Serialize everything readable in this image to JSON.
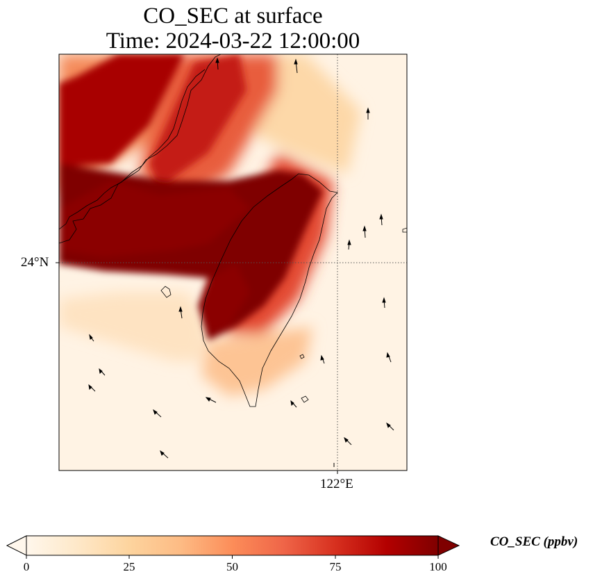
{
  "title": {
    "line1": "CO_SEC at surface",
    "line2": "Time: 2024-03-22 12:00:00"
  },
  "map": {
    "projection": "PlateCarree",
    "gridlines": "dotted",
    "lat_tick_label": "24°N",
    "lon_tick_label": "122°E",
    "features": [
      "coastline",
      "wind-vectors",
      "gridded-concentration-field"
    ],
    "colormap": "OrRd"
  },
  "colorbar": {
    "label": "CO_SEC (ppbv)",
    "ticks": [
      "0",
      "25",
      "50",
      "75",
      "100"
    ],
    "min": 0,
    "max": 100,
    "extend": "both",
    "colors": [
      "#fff7ec",
      "#fee8c8",
      "#fdd49e",
      "#fdbb84",
      "#fc8d59",
      "#ef6548",
      "#d7301f",
      "#b30000",
      "#7f0000"
    ]
  },
  "chart_data": {
    "type": "heatmap",
    "title": "CO_SEC at surface",
    "subtitle": "Time: 2024-03-22 12:00:00",
    "variable": "CO_SEC",
    "units": "ppbv",
    "value_range": [
      0,
      100
    ]
  }
}
